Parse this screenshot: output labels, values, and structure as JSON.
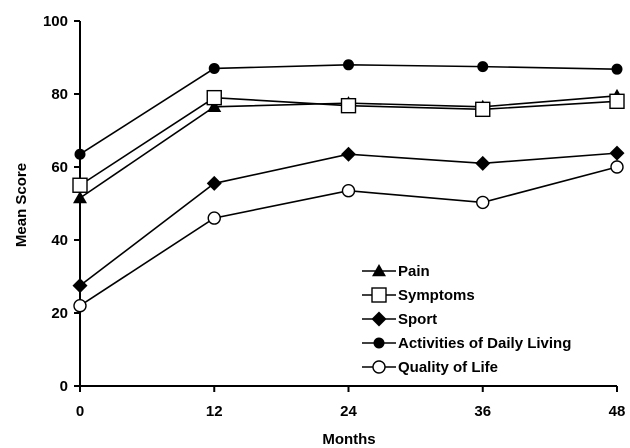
{
  "chart_data": {
    "type": "line",
    "xlabel": "Months",
    "ylabel": "Mean Score",
    "x": [
      0,
      12,
      24,
      36,
      48
    ],
    "xticks": [
      "0",
      "12",
      "24",
      "36",
      "48"
    ],
    "yticks": [
      "0",
      "20",
      "40",
      "60",
      "80",
      "100"
    ],
    "xlim": [
      0,
      48
    ],
    "ylim": [
      0,
      100
    ],
    "grid": false,
    "legend_position": "bottom-right",
    "series": [
      {
        "name": "Pain",
        "marker": "filled-triangle",
        "values": [
          51.5,
          76.5,
          77.5,
          76.5,
          79.5
        ]
      },
      {
        "name": "Symptoms",
        "marker": "open-square",
        "values": [
          55,
          79,
          76.8,
          75.8,
          78
        ]
      },
      {
        "name": "Sport",
        "marker": "filled-diamond",
        "values": [
          27.5,
          55.5,
          63.5,
          61,
          63.8
        ]
      },
      {
        "name": "Activities of Daily Living",
        "marker": "filled-circle",
        "values": [
          63.5,
          87,
          88,
          87.5,
          86.8
        ]
      },
      {
        "name": "Quality of Life",
        "marker": "open-circle",
        "values": [
          22,
          46,
          53.5,
          50.3,
          60
        ]
      }
    ],
    "colors": {
      "line": "#000000",
      "background": "#ffffff"
    }
  }
}
